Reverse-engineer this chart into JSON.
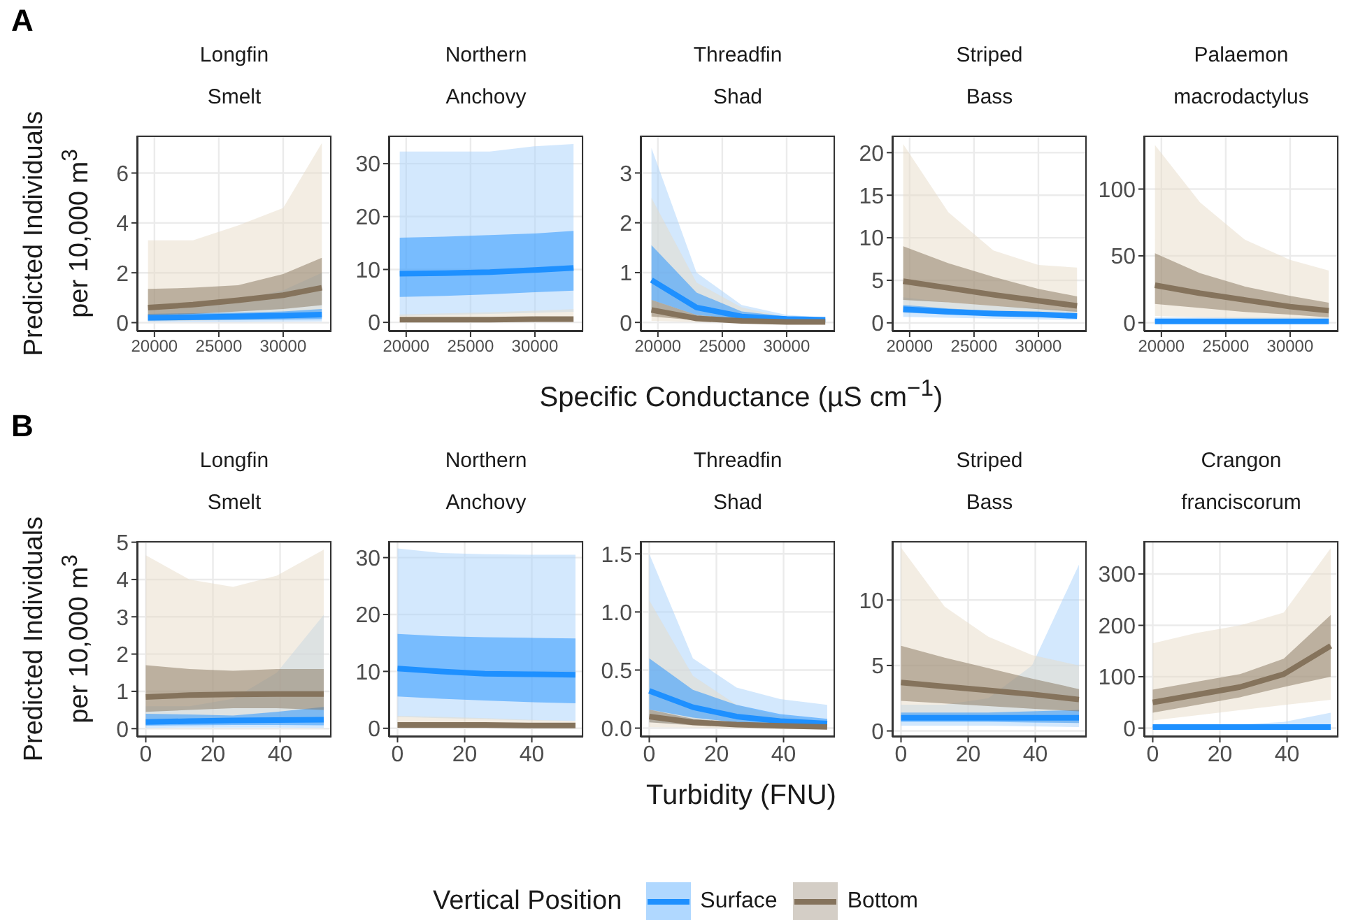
{
  "chart_data": [
    {
      "type": "line",
      "title": "Longfin Smelt",
      "legend": "bottom",
      "legend_title": "Vertical Position",
      "annotations": [
        "A"
      ],
      "ylabel": "Predicted Individuals per 10,000 m$^{3}$",
      "x": [
        19500,
        23000,
        26500,
        30000,
        33000
      ],
      "xlim": [
        18650,
        33750
      ],
      "xticks": [
        20000,
        25000,
        30000
      ],
      "ylim": [
        -0.35,
        7.5
      ],
      "yticks": [
        0,
        2,
        4,
        6
      ],
      "grid": true,
      "series": [
        {
          "color": "#a8d2fb",
          "values": [
            null,
            null,
            null,
            null,
            null
          ],
          "lower": [
            0.02,
            0.03,
            0.03,
            0.04,
            0.05
          ],
          "upper": [
            0.5,
            0.6,
            0.9,
            1.3,
            2.0
          ]
        },
        {
          "color": "#e8dcc8",
          "values": [
            null,
            null,
            null,
            null,
            null
          ],
          "lower": [
            0.05,
            0.08,
            0.1,
            0.15,
            0.2
          ],
          "upper": [
            3.3,
            3.3,
            3.9,
            4.6,
            7.2
          ]
        },
        {
          "name": "Surface",
          "color": "#1e90ff",
          "values": [
            0.2,
            0.22,
            0.25,
            0.28,
            0.32
          ],
          "lower": [
            0.08,
            0.1,
            0.1,
            0.12,
            0.14
          ],
          "upper": [
            0.35,
            0.38,
            0.4,
            0.45,
            0.55
          ]
        },
        {
          "name": "Bottom",
          "color": "#85735c",
          "values": [
            0.6,
            0.72,
            0.9,
            1.1,
            1.4
          ],
          "lower": [
            0.3,
            0.35,
            0.45,
            0.55,
            0.7
          ],
          "upper": [
            1.35,
            1.4,
            1.5,
            1.95,
            2.6
          ]
        }
      ]
    },
    {
      "type": "line",
      "title": "Northern Anchovy",
      "x": [
        19500,
        23000,
        26500,
        30000,
        33000
      ],
      "xlim": [
        18650,
        33750
      ],
      "xticks": [
        20000,
        25000,
        30000
      ],
      "ylim": [
        -1.7,
        35.3
      ],
      "yticks": [
        0,
        10,
        20,
        30
      ],
      "grid": true,
      "series": [
        {
          "color": "#a8d2fb",
          "values": [
            null,
            null,
            null,
            null,
            null
          ],
          "lower": [
            1.2,
            1.4,
            1.6,
            1.8,
            2
          ],
          "upper": [
            32.3,
            32.3,
            32.3,
            33.3,
            33.7
          ]
        },
        {
          "color": "#e8dcc8",
          "values": [
            null,
            null,
            null,
            null,
            null
          ],
          "lower": [
            0.1,
            0.1,
            0.1,
            0.1,
            0.1
          ],
          "upper": [
            1.5,
            1.7,
            1.9,
            2.2,
            2.5
          ]
        },
        {
          "color": "#1e90ff",
          "values": [
            9.2,
            9.3,
            9.5,
            9.9,
            10.3
          ],
          "lower": [
            4.8,
            5,
            5.3,
            5.7,
            6
          ],
          "upper": [
            16,
            16.2,
            16.5,
            16.8,
            17.3
          ]
        },
        {
          "color": "#85735c",
          "values": [
            0.5,
            0.5,
            0.5,
            0.6,
            0.6
          ]
        }
      ]
    },
    {
      "type": "line",
      "title": "Threadfin Shad",
      "xlabel": "Specific Conductance (µS cm$^{−1}$)",
      "x": [
        19500,
        23000,
        26500,
        30000,
        33000
      ],
      "xlim": [
        18650,
        33750
      ],
      "xticks": [
        20000,
        25000,
        30000
      ],
      "ylim": [
        -0.18,
        3.75
      ],
      "yticks": [
        0,
        1,
        2,
        3
      ],
      "grid": true,
      "series": [
        {
          "color": "#a8d2fb",
          "values": [
            null,
            null,
            null,
            null,
            null
          ],
          "lower": [
            0.2,
            0.05,
            0.02,
            0.01,
            0.005
          ],
          "upper": [
            3.5,
            1.0,
            0.35,
            0.15,
            0.1
          ]
        },
        {
          "color": "#e8dcc8",
          "values": [
            null,
            null,
            null,
            null,
            null
          ],
          "lower": [
            0.03,
            0.01,
            0,
            0,
            0
          ],
          "upper": [
            2.5,
            0.8,
            0.3,
            0.1,
            0.05
          ]
        },
        {
          "color": "#1e90ff",
          "values": [
            0.85,
            0.3,
            0.12,
            0.07,
            0.05
          ],
          "lower": [
            0.45,
            0.15,
            0.06,
            0.03,
            0.02
          ],
          "upper": [
            1.55,
            0.6,
            0.22,
            0.12,
            0.08
          ]
        },
        {
          "color": "#85735c",
          "values": [
            0.25,
            0.08,
            0.03,
            0.01,
            0.01
          ],
          "lower": [
            0.12,
            0.04,
            0.01,
            0.005,
            0.002
          ],
          "upper": [
            0.45,
            0.15,
            0.06,
            0.03,
            0.02
          ]
        }
      ]
    },
    {
      "type": "line",
      "title": "Striped Bass",
      "x": [
        19500,
        23000,
        26500,
        30000,
        33000
      ],
      "xlim": [
        18650,
        33750
      ],
      "xticks": [
        20000,
        25000,
        30000
      ],
      "ylim": [
        -1,
        22
      ],
      "yticks": [
        0,
        5,
        10,
        15,
        20
      ],
      "grid": true,
      "series": [
        {
          "color": "#a8d2fb",
          "values": [
            null,
            null,
            null,
            null,
            null
          ],
          "lower": [
            0.7,
            0.6,
            0.5,
            0.4,
            0.35
          ],
          "upper": [
            3,
            2.4,
            2,
            1.7,
            1.5
          ]
        },
        {
          "color": "#e8dcc8",
          "values": [
            null,
            null,
            null,
            null,
            null
          ],
          "lower": [
            1.2,
            1.1,
            0.9,
            0.7,
            0.5
          ],
          "upper": [
            21,
            13,
            8.5,
            6.8,
            6.5
          ]
        },
        {
          "color": "#1e90ff",
          "values": [
            1.6,
            1.3,
            1.1,
            1,
            0.8
          ],
          "lower": [
            1.2,
            1,
            0.85,
            0.75,
            0.6
          ],
          "upper": [
            2.1,
            1.7,
            1.4,
            1.2,
            1.1
          ]
        },
        {
          "color": "#85735c",
          "values": [
            4.9,
            4.1,
            3.3,
            2.6,
            2.0
          ],
          "lower": [
            2.7,
            2.4,
            2,
            1.6,
            1.3
          ],
          "upper": [
            9,
            7,
            5.4,
            4,
            3.1
          ]
        }
      ]
    },
    {
      "type": "line",
      "title": "Palaemon macrodactylus",
      "x": [
        19500,
        23000,
        26500,
        30000,
        33000
      ],
      "xlim": [
        18650,
        33750
      ],
      "xticks": [
        20000,
        25000,
        30000
      ],
      "ylim": [
        -6.5,
        140
      ],
      "yticks": [
        0,
        50,
        100
      ],
      "grid": true,
      "series": [
        {
          "color": "#a8d2fb",
          "values": [
            null,
            null,
            null,
            null,
            null
          ],
          "lower": [
            0.2,
            0.2,
            0.2,
            0.2,
            0.2
          ],
          "upper": [
            4,
            4,
            4,
            4,
            4
          ]
        },
        {
          "color": "#e8dcc8",
          "values": [
            null,
            null,
            null,
            null,
            null
          ],
          "lower": [
            5,
            4,
            3,
            2,
            1.5
          ],
          "upper": [
            133,
            90,
            62,
            47,
            39
          ]
        },
        {
          "color": "#1e90ff",
          "values": [
            1,
            1,
            1,
            1,
            1
          ],
          "lower": [
            0.5,
            0.5,
            0.5,
            0.5,
            0.5
          ],
          "upper": [
            2,
            2,
            2,
            2,
            2
          ]
        },
        {
          "color": "#85735c",
          "values": [
            28,
            22,
            17,
            12,
            9
          ],
          "lower": [
            14,
            11,
            8,
            6,
            4
          ],
          "upper": [
            52,
            37,
            27,
            20,
            15
          ]
        }
      ]
    },
    {
      "type": "line",
      "title": "Longfin Smelt",
      "annotations": [
        "B"
      ],
      "ylabel": "Predicted Individuals per 10,000 m$^{3}$",
      "x": [
        0,
        13,
        26,
        39,
        53
      ],
      "xlim": [
        -2.6,
        55.3
      ],
      "xticks": [
        0,
        20,
        40
      ],
      "ylim": [
        -0.22,
        5.03
      ],
      "yticks": [
        0,
        1,
        2,
        3,
        4,
        5
      ],
      "grid": true,
      "series": [
        {
          "color": "#a8d2fb",
          "values": [
            null,
            null,
            null,
            null,
            null
          ],
          "lower": [
            0.02,
            0.03,
            0.03,
            0.03,
            0.02
          ],
          "upper": [
            0.6,
            0.6,
            0.8,
            1.5,
            3.05
          ]
        },
        {
          "color": "#e8dcc8",
          "values": [
            null,
            null,
            null,
            null,
            null
          ],
          "lower": [
            0.15,
            0.2,
            0.2,
            0.2,
            0.15
          ],
          "upper": [
            4.65,
            4.0,
            3.8,
            4.1,
            4.8
          ]
        },
        {
          "color": "#1e90ff",
          "values": [
            0.18,
            0.2,
            0.22,
            0.23,
            0.24
          ],
          "lower": [
            0.08,
            0.09,
            0.1,
            0.1,
            0.09
          ],
          "upper": [
            0.4,
            0.38,
            0.35,
            0.45,
            0.58
          ]
        },
        {
          "color": "#85735c",
          "values": [
            0.85,
            0.9,
            0.92,
            0.93,
            0.93
          ],
          "lower": [
            0.45,
            0.5,
            0.55,
            0.55,
            0.5
          ],
          "upper": [
            1.7,
            1.6,
            1.55,
            1.6,
            1.6
          ]
        }
      ]
    },
    {
      "type": "line",
      "title": "Northern Anchovy",
      "x": [
        0,
        13,
        26,
        39,
        53
      ],
      "xlim": [
        -2.6,
        55.3
      ],
      "xticks": [
        0,
        20,
        40
      ],
      "ylim": [
        -1.5,
        32.9
      ],
      "yticks": [
        0,
        10,
        20,
        30
      ],
      "grid": true,
      "series": [
        {
          "color": "#a8d2fb",
          "values": [
            null,
            null,
            null,
            null,
            null
          ],
          "lower": [
            2,
            1.8,
            1.6,
            1.4,
            1.3
          ],
          "upper": [
            31.6,
            30.8,
            30.6,
            30.5,
            30.5
          ]
        },
        {
          "color": "#e8dcc8",
          "values": [
            null,
            null,
            null,
            null,
            null
          ],
          "lower": [
            0.1,
            0.1,
            0.1,
            0.1,
            0.1
          ],
          "upper": [
            2.2,
            2,
            1.8,
            1.5,
            1.3
          ]
        },
        {
          "color": "#1e90ff",
          "values": [
            10.5,
            10,
            9.6,
            9.5,
            9.4
          ],
          "lower": [
            5.6,
            5.2,
            4.9,
            4.6,
            4.4
          ],
          "upper": [
            16.6,
            16.2,
            16,
            15.9,
            15.8
          ]
        },
        {
          "color": "#85735c",
          "values": [
            0.6,
            0.6,
            0.6,
            0.5,
            0.5
          ]
        }
      ]
    },
    {
      "type": "line",
      "title": "Threadfin Shad",
      "xlabel": "Turbidity (FNU)",
      "x": [
        0,
        13,
        26,
        39,
        53
      ],
      "xlim": [
        -2.6,
        55.3
      ],
      "xticks": [
        0,
        20,
        40
      ],
      "ylim": [
        -0.075,
        1.61
      ],
      "yticks": [
        {
          "value": 0,
          "label": "0.0"
        },
        {
          "value": 0.5,
          "label": "0.5"
        },
        {
          "value": 1,
          "label": "1.0"
        },
        {
          "value": 1.5,
          "label": "1.5"
        }
      ],
      "grid": true,
      "series": [
        {
          "color": "#a8d2fb",
          "values": [
            null,
            null,
            null,
            null,
            null
          ],
          "lower": [
            0.05,
            0.03,
            0.02,
            0.01,
            0.005
          ],
          "upper": [
            1.5,
            0.6,
            0.35,
            0.25,
            0.2
          ]
        },
        {
          "color": "#e8dcc8",
          "values": [
            null,
            null,
            null,
            null,
            null
          ],
          "lower": [
            0.01,
            0.005,
            0,
            0,
            0
          ],
          "upper": [
            1.1,
            0.45,
            0.2,
            0.1,
            0.06
          ]
        },
        {
          "color": "#1e90ff",
          "values": [
            0.32,
            0.18,
            0.1,
            0.06,
            0.04
          ],
          "lower": [
            0.16,
            0.09,
            0.05,
            0.03,
            0.02
          ],
          "upper": [
            0.6,
            0.33,
            0.2,
            0.12,
            0.08
          ]
        },
        {
          "color": "#85735c",
          "values": [
            0.1,
            0.05,
            0.03,
            0.02,
            0.01
          ],
          "lower": [
            0.05,
            0.025,
            0.012,
            0.007,
            0.004
          ],
          "upper": [
            0.16,
            0.08,
            0.045,
            0.03,
            0.02
          ]
        }
      ]
    },
    {
      "type": "line",
      "title": "Striped Bass",
      "x": [
        0,
        13,
        26,
        39,
        53
      ],
      "xlim": [
        -2.6,
        55.3
      ],
      "xticks": [
        0,
        20,
        40
      ],
      "ylim": [
        -0.45,
        14.5
      ],
      "yticks": [
        0,
        5,
        10
      ],
      "grid": true,
      "series": [
        {
          "color": "#a8d2fb",
          "values": [
            null,
            null,
            null,
            null,
            null
          ],
          "lower": [
            0.4,
            0.4,
            0.4,
            0.35,
            0.3
          ],
          "upper": [
            2,
            2,
            2.5,
            5,
            12.7
          ]
        },
        {
          "color": "#e8dcc8",
          "values": [
            null,
            null,
            null,
            null,
            null
          ],
          "lower": [
            1,
            0.9,
            0.8,
            0.7,
            0.6
          ],
          "upper": [
            14,
            9.5,
            7.2,
            5.8,
            5
          ]
        },
        {
          "color": "#1e90ff",
          "values": [
            1,
            1,
            1,
            1,
            1
          ],
          "lower": [
            0.7,
            0.7,
            0.7,
            0.65,
            0.6
          ],
          "upper": [
            1.4,
            1.4,
            1.4,
            1.5,
            1.6
          ]
        },
        {
          "color": "#85735c",
          "values": [
            3.7,
            3.4,
            3.1,
            2.8,
            2.4
          ],
          "lower": [
            2.3,
            2.1,
            1.9,
            1.7,
            1.5
          ],
          "upper": [
            6.5,
            5.6,
            4.8,
            4,
            3.2
          ]
        }
      ]
    },
    {
      "type": "line",
      "title": "Crangon franciscorum",
      "x": [
        0,
        13,
        26,
        39,
        53
      ],
      "xlim": [
        -2.6,
        55.3
      ],
      "xticks": [
        0,
        20,
        40
      ],
      "ylim": [
        -17,
        364
      ],
      "yticks": [
        0,
        100,
        200,
        300
      ],
      "grid": true,
      "series": [
        {
          "color": "#a8d2fb",
          "values": [
            null,
            null,
            null,
            null,
            null
          ],
          "lower": [
            0.5,
            0.5,
            0.5,
            0.5,
            0.5
          ],
          "upper": [
            4,
            5,
            7,
            12,
            30
          ]
        },
        {
          "color": "#e8dcc8",
          "values": [
            null,
            null,
            null,
            null,
            null
          ],
          "lower": [
            15,
            25,
            35,
            45,
            55
          ],
          "upper": [
            165,
            185,
            200,
            225,
            350
          ]
        },
        {
          "color": "#1e90ff",
          "values": [
            2,
            2,
            2,
            2,
            2
          ],
          "lower": [
            1,
            1,
            1,
            1,
            1
          ],
          "upper": [
            4,
            4,
            4,
            4,
            4
          ]
        },
        {
          "color": "#85735c",
          "values": [
            50,
            65,
            80,
            105,
            160
          ],
          "lower": [
            30,
            45,
            60,
            80,
            100
          ],
          "upper": [
            75,
            90,
            105,
            135,
            220
          ]
        }
      ]
    }
  ]
}
